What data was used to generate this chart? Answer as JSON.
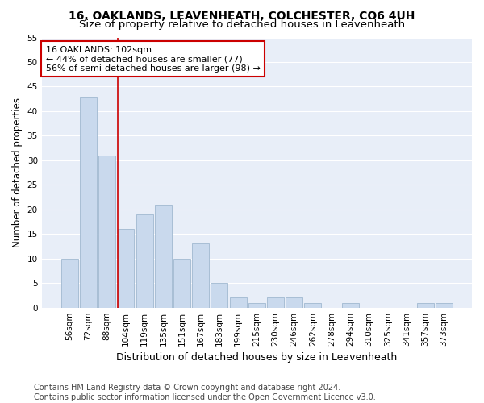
{
  "title": "16, OAKLANDS, LEAVENHEATH, COLCHESTER, CO6 4UH",
  "subtitle": "Size of property relative to detached houses in Leavenheath",
  "xlabel": "Distribution of detached houses by size in Leavenheath",
  "ylabel": "Number of detached properties",
  "categories": [
    "56sqm",
    "72sqm",
    "88sqm",
    "104sqm",
    "119sqm",
    "135sqm",
    "151sqm",
    "167sqm",
    "183sqm",
    "199sqm",
    "215sqm",
    "230sqm",
    "246sqm",
    "262sqm",
    "278sqm",
    "294sqm",
    "310sqm",
    "325sqm",
    "341sqm",
    "357sqm",
    "373sqm"
  ],
  "values": [
    10,
    43,
    31,
    16,
    19,
    21,
    10,
    13,
    5,
    2,
    1,
    2,
    2,
    1,
    0,
    1,
    0,
    0,
    0,
    1,
    1
  ],
  "bar_color": "#c9d9ed",
  "bar_edge_color": "#a0b8d0",
  "background_color": "#e8eef8",
  "grid_color": "#ffffff",
  "annotation_line1": "16 OAKLANDS: 102sqm",
  "annotation_line2": "← 44% of detached houses are smaller (77)",
  "annotation_line3": "56% of semi-detached houses are larger (98) →",
  "annotation_box_color": "#ffffff",
  "annotation_box_edge_color": "#cc0000",
  "footer_line1": "Contains HM Land Registry data © Crown copyright and database right 2024.",
  "footer_line2": "Contains public sector information licensed under the Open Government Licence v3.0.",
  "ylim": [
    0,
    55
  ],
  "yticks": [
    0,
    5,
    10,
    15,
    20,
    25,
    30,
    35,
    40,
    45,
    50,
    55
  ],
  "redline_x": 2.55,
  "title_fontsize": 10,
  "subtitle_fontsize": 9.5,
  "xlabel_fontsize": 9,
  "ylabel_fontsize": 8.5,
  "tick_fontsize": 7.5,
  "annotation_fontsize": 8,
  "footer_fontsize": 7
}
